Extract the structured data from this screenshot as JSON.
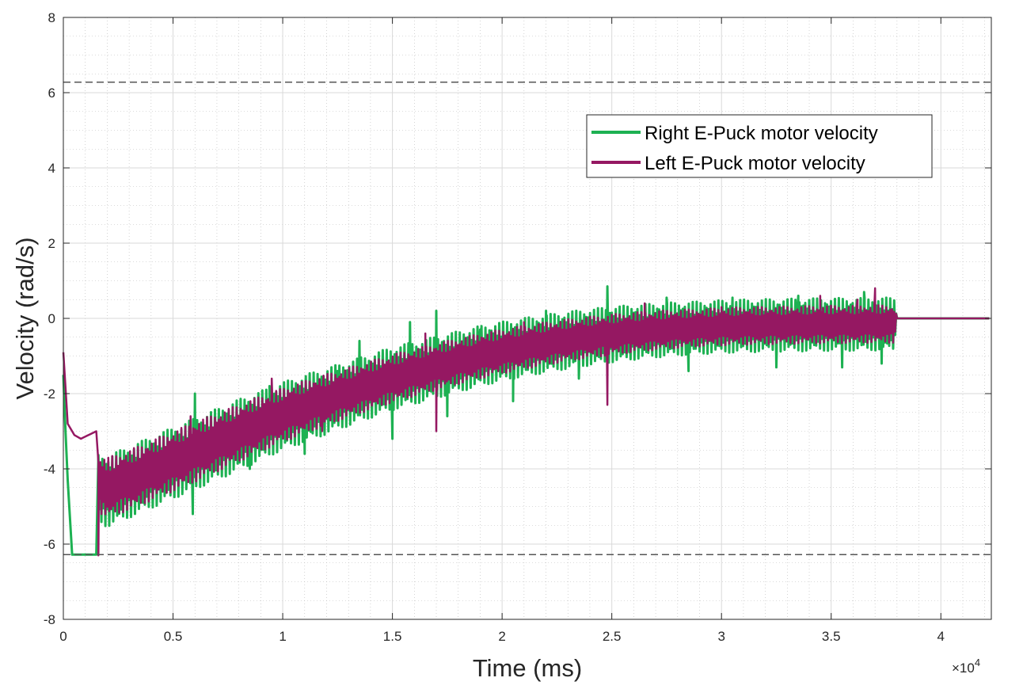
{
  "chart_data": {
    "type": "line",
    "title": "",
    "xlabel": "Time (ms)",
    "ylabel": "Velocity (rad/s)",
    "x_exponent_label": {
      "prefix": "×10",
      "power": "4"
    },
    "xlim": [
      0,
      42300
    ],
    "ylim": [
      -8,
      8
    ],
    "x_ticks": [
      0,
      5000,
      10000,
      15000,
      20000,
      25000,
      30000,
      35000,
      40000
    ],
    "x_tick_labels": [
      "0",
      "0.5",
      "1",
      "1.5",
      "2",
      "2.5",
      "3",
      "3.5",
      "4"
    ],
    "y_ticks": [
      -8,
      -6,
      -4,
      -2,
      0,
      2,
      4,
      6,
      8
    ],
    "y_tick_labels": [
      "-8",
      "-6",
      "-4",
      "-2",
      "0",
      "2",
      "4",
      "6",
      "8"
    ],
    "grid": true,
    "minor_grid": true,
    "legend_position": "top-right",
    "reference_lines": [
      6.28,
      -6.28
    ],
    "series": [
      {
        "name": "Right E-Puck motor velocity",
        "color": "#1db152",
        "x": [
          0,
          150,
          400,
          1500,
          1550,
          2000,
          3000,
          4000,
          5000,
          6000,
          7000,
          8000,
          9000,
          10000,
          11000,
          12000,
          13000,
          14000,
          15000,
          16000,
          17000,
          18000,
          19000,
          20000,
          21000,
          22000,
          23000,
          24000,
          25000,
          26000,
          27000,
          28000,
          29000,
          30000,
          31000,
          32000,
          33000,
          34000,
          35000,
          36000,
          37000,
          37900,
          38000,
          42300
        ],
        "center": [
          -1.5,
          -3.8,
          -6.28,
          -6.28,
          -4.5,
          -4.6,
          -4.35,
          -4.1,
          -3.85,
          -3.6,
          -3.35,
          -3.1,
          -2.85,
          -2.6,
          -2.4,
          -2.2,
          -2.0,
          -1.8,
          -1.6,
          -1.45,
          -1.3,
          -1.15,
          -1.0,
          -0.88,
          -0.77,
          -0.67,
          -0.58,
          -0.5,
          -0.43,
          -0.37,
          -0.32,
          -0.28,
          -0.25,
          -0.22,
          -0.2,
          -0.19,
          -0.18,
          -0.17,
          -0.16,
          -0.16,
          -0.15,
          -0.15,
          0,
          0
        ],
        "amplitude": [
          0,
          0,
          0,
          0,
          0.9,
          0.95,
          0.95,
          0.95,
          0.95,
          0.95,
          0.95,
          0.95,
          0.92,
          0.9,
          0.9,
          0.88,
          0.86,
          0.85,
          0.84,
          0.83,
          0.82,
          0.81,
          0.8,
          0.79,
          0.78,
          0.77,
          0.76,
          0.75,
          0.74,
          0.73,
          0.72,
          0.71,
          0.7,
          0.7,
          0.7,
          0.7,
          0.7,
          0.7,
          0.7,
          0.7,
          0.7,
          0.7,
          0,
          0
        ],
        "spikes": [
          [
            5900,
            -5.2
          ],
          [
            6000,
            -2.0
          ],
          [
            8500,
            -4.0
          ],
          [
            9400,
            -1.8
          ],
          [
            11000,
            -3.6
          ],
          [
            12500,
            -1.4
          ],
          [
            13500,
            -0.6
          ],
          [
            15000,
            -3.2
          ],
          [
            15800,
            -0.1
          ],
          [
            17000,
            0.2
          ],
          [
            17500,
            -2.6
          ],
          [
            19000,
            -0.3
          ],
          [
            20500,
            -2.2
          ],
          [
            22000,
            0.2
          ],
          [
            23500,
            -1.6
          ],
          [
            24800,
            0.85
          ],
          [
            25800,
            -0.9
          ],
          [
            27500,
            0.55
          ],
          [
            28500,
            -1.4
          ],
          [
            30500,
            0.55
          ],
          [
            32500,
            -1.3
          ],
          [
            33500,
            0.6
          ],
          [
            35500,
            -1.3
          ],
          [
            36500,
            0.7
          ],
          [
            37300,
            -1.2
          ]
        ]
      },
      {
        "name": "Left E-Puck motor velocity",
        "color": "#951862",
        "x": [
          0,
          200,
          500,
          800,
          1500,
          1550,
          2000,
          3000,
          4000,
          5000,
          6000,
          7000,
          8000,
          9000,
          10000,
          11000,
          12000,
          13000,
          14000,
          15000,
          16000,
          17000,
          18000,
          19000,
          20000,
          21000,
          22000,
          23000,
          24000,
          25000,
          26000,
          27000,
          28000,
          29000,
          30000,
          31000,
          32000,
          33000,
          34000,
          35000,
          36000,
          37000,
          37900,
          38000,
          42300
        ],
        "center": [
          -0.9,
          -2.8,
          -3.1,
          -3.2,
          -3.0,
          -4.4,
          -4.5,
          -4.3,
          -4.05,
          -3.8,
          -3.55,
          -3.3,
          -3.05,
          -2.8,
          -2.57,
          -2.36,
          -2.16,
          -1.97,
          -1.78,
          -1.6,
          -1.44,
          -1.29,
          -1.14,
          -1.0,
          -0.88,
          -0.77,
          -0.67,
          -0.58,
          -0.5,
          -0.43,
          -0.37,
          -0.32,
          -0.28,
          -0.25,
          -0.22,
          -0.2,
          -0.19,
          -0.18,
          -0.17,
          -0.16,
          -0.16,
          -0.15,
          -0.15,
          0,
          0
        ],
        "amplitude": [
          0,
          0,
          0,
          0,
          0,
          0.75,
          0.8,
          0.8,
          0.8,
          0.8,
          0.8,
          0.78,
          0.76,
          0.74,
          0.72,
          0.7,
          0.68,
          0.66,
          0.65,
          0.64,
          0.63,
          0.62,
          0.61,
          0.6,
          0.59,
          0.58,
          0.57,
          0.56,
          0.55,
          0.54,
          0.53,
          0.52,
          0.51,
          0.5,
          0.5,
          0.5,
          0.5,
          0.5,
          0.5,
          0.5,
          0.5,
          0.5,
          0.5,
          0,
          0
        ],
        "spikes": [
          [
            1600,
            -6.3
          ],
          [
            5800,
            -2.6
          ],
          [
            9500,
            -1.6
          ],
          [
            11800,
            -3.0
          ],
          [
            12300,
            -1.7
          ],
          [
            14800,
            -1.9
          ],
          [
            16500,
            -0.4
          ],
          [
            17000,
            -3.0
          ],
          [
            18500,
            -0.9
          ],
          [
            21000,
            -0.1
          ],
          [
            23200,
            -0.4
          ],
          [
            24800,
            -2.3
          ],
          [
            26500,
            0.4
          ],
          [
            28000,
            -0.3
          ],
          [
            30000,
            0.3
          ],
          [
            32000,
            0.1
          ],
          [
            34500,
            0.6
          ],
          [
            36200,
            0.5
          ],
          [
            37000,
            0.8
          ]
        ]
      }
    ]
  }
}
